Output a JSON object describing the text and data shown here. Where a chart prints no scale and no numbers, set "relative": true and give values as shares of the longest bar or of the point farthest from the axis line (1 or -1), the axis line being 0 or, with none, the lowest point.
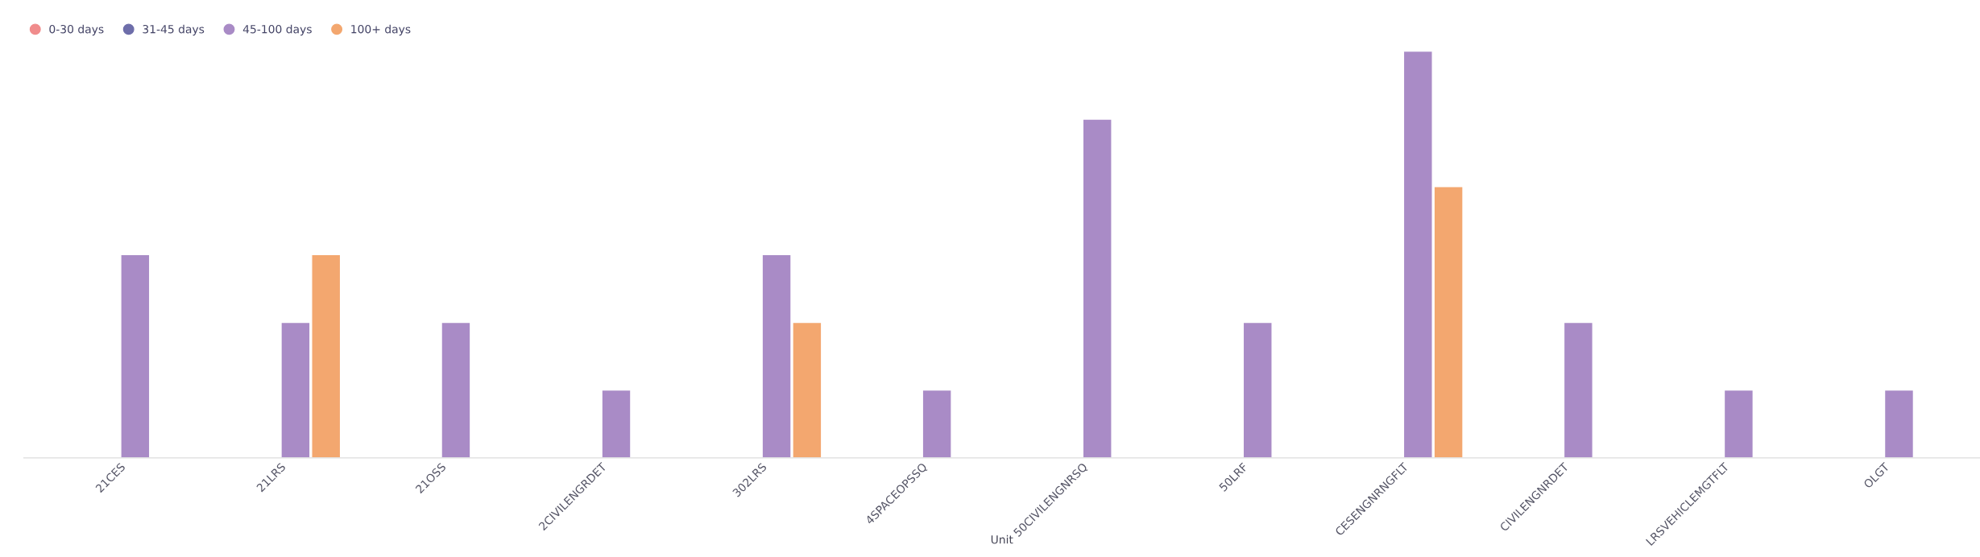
{
  "chart_data": {
    "type": "bar",
    "relative": true,
    "xlabel": "Unit",
    "legend": "top left",
    "grid": false,
    "categories": [
      "21CES",
      "21LRS",
      "21OSS",
      "2CIVILENGRDET",
      "302LRS",
      "4SPACEOPSSQ",
      "50CIVILENGNRSQ",
      "50LRF",
      "CESENGNRNGFLT",
      "CIVILENGNRDET",
      "LRSVEHICLEMGTFLT",
      "OLGT"
    ],
    "series": [
      {
        "name": "0-30 days",
        "color": "#f08c8c",
        "values": [
          null,
          null,
          null,
          null,
          null,
          null,
          null,
          null,
          null,
          null,
          null,
          null
        ]
      },
      {
        "name": "31-45 days",
        "color": "#6e6eaa",
        "values": [
          null,
          null,
          null,
          null,
          null,
          null,
          null,
          null,
          null,
          null,
          null,
          null
        ]
      },
      {
        "name": "45-100 days",
        "color": "#a98bc6",
        "values": [
          0.5,
          0.333,
          0.333,
          0.167,
          0.5,
          0.167,
          0.833,
          0.333,
          1,
          0.333,
          0.167,
          0.167
        ]
      },
      {
        "name": "100+ days",
        "color": "#f3a76f",
        "values": [
          null,
          0.5,
          null,
          null,
          0.333,
          null,
          null,
          null,
          0.667,
          null,
          null,
          null
        ]
      }
    ]
  }
}
